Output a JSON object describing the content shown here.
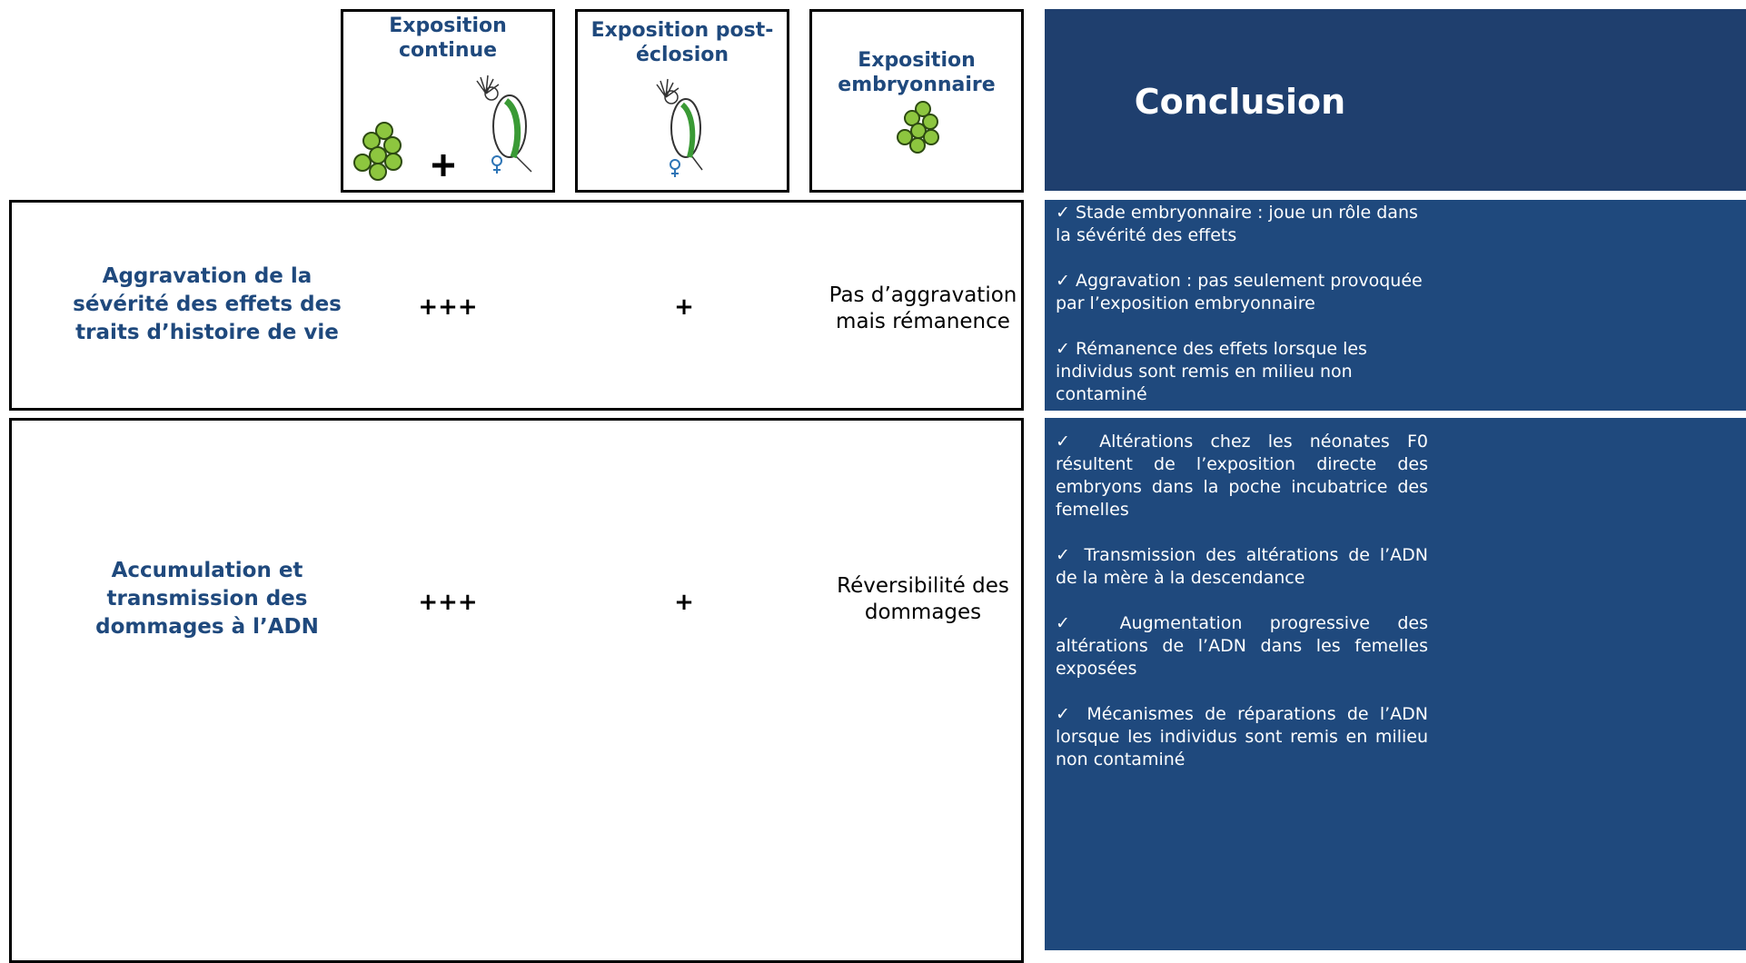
{
  "header": {
    "columns": [
      {
        "title": "Exposition continue"
      },
      {
        "title": "Exposition post-éclosion"
      },
      {
        "title": "Exposition embryonnaire"
      }
    ],
    "conclusion_title": "Conclusion"
  },
  "rows": [
    {
      "label": "Aggravation de la sévérité des  effets des traits d’histoire de vie",
      "cells": [
        "+++",
        "+",
        "Pas d’aggravation mais rémanence"
      ],
      "conclusions": [
        "✓   Stade embryonnaire : joue un rôle dans la sévérité des effets",
        "✓   Aggravation : pas seulement provoquée par l’exposition embryonnaire",
        "✓   Rémanence des effets lorsque les individus sont remis en milieu non contaminé"
      ]
    },
    {
      "label": "Accumulation et transmission des dommages à l’ADN",
      "cells": [
        "+++",
        "+",
        "Réversibilité des dommages"
      ],
      "conclusions": [
        "✓   Altérations chez les néonates F0 résultent de l’exposition directe des embryons dans la poche incubatrice des femelles",
        "✓   Transmission des altérations de l’ADN de la mère à la descendance",
        "✓   Augmentation progressive des altérations de l’ADN dans les femelles exposées",
        "✓   Mécanismes de réparations de l’ADN lorsque les individus sont remis en milieu non contaminé"
      ]
    }
  ]
}
